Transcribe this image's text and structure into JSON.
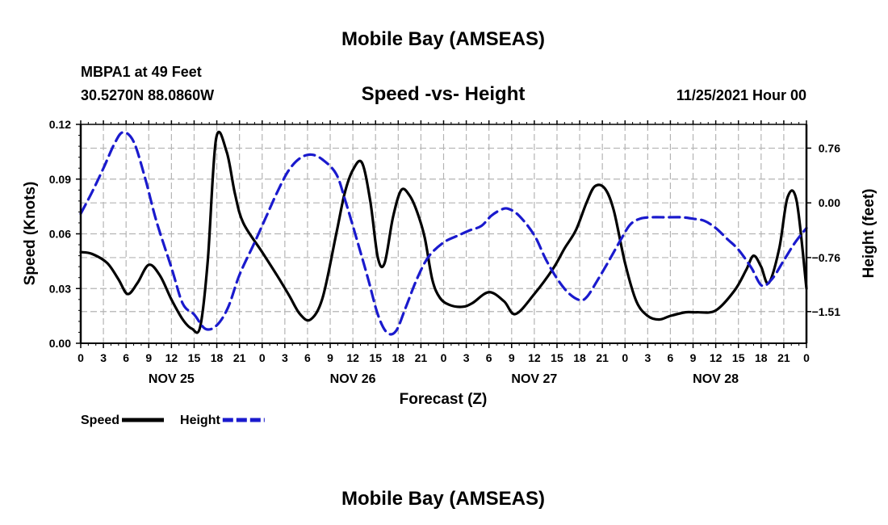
{
  "page": {
    "footer_title": "Mobile Bay (AMSEAS)"
  },
  "chart_data": {
    "type": "line",
    "title": "Mobile Bay (AMSEAS)",
    "subtitle": "Speed -vs- Height",
    "station": {
      "name": "MBPA1 at 49 Feet",
      "coords": "30.5270N  88.0860W"
    },
    "timestamp": "11/25/2021 Hour 00",
    "xlabel": "Forecast (Z)",
    "ylabel_left": "Speed (Knots)",
    "ylabel_right": "Height (feet)",
    "xlim": [
      0,
      96
    ],
    "ylim_left": [
      0,
      0.12
    ],
    "ylim_right": [
      -1.95,
      1.09
    ],
    "x_ticks": [
      {
        "x": 0,
        "label": "0"
      },
      {
        "x": 3,
        "label": "3"
      },
      {
        "x": 6,
        "label": "6"
      },
      {
        "x": 9,
        "label": "9"
      },
      {
        "x": 12,
        "label": "12"
      },
      {
        "x": 15,
        "label": "15"
      },
      {
        "x": 18,
        "label": "18"
      },
      {
        "x": 21,
        "label": "21"
      },
      {
        "x": 24,
        "label": "0"
      },
      {
        "x": 27,
        "label": "3"
      },
      {
        "x": 30,
        "label": "6"
      },
      {
        "x": 33,
        "label": "9"
      },
      {
        "x": 36,
        "label": "12"
      },
      {
        "x": 39,
        "label": "15"
      },
      {
        "x": 42,
        "label": "18"
      },
      {
        "x": 45,
        "label": "21"
      },
      {
        "x": 48,
        "label": "0"
      },
      {
        "x": 51,
        "label": "3"
      },
      {
        "x": 54,
        "label": "6"
      },
      {
        "x": 57,
        "label": "9"
      },
      {
        "x": 60,
        "label": "12"
      },
      {
        "x": 63,
        "label": "15"
      },
      {
        "x": 66,
        "label": "18"
      },
      {
        "x": 69,
        "label": "21"
      },
      {
        "x": 72,
        "label": "0"
      },
      {
        "x": 75,
        "label": "3"
      },
      {
        "x": 78,
        "label": "6"
      },
      {
        "x": 81,
        "label": "9"
      },
      {
        "x": 84,
        "label": "12"
      },
      {
        "x": 87,
        "label": "15"
      },
      {
        "x": 90,
        "label": "18"
      },
      {
        "x": 93,
        "label": "21"
      },
      {
        "x": 96,
        "label": "0"
      }
    ],
    "day_labels": [
      {
        "x": 12,
        "label": "NOV 25"
      },
      {
        "x": 36,
        "label": "NOV 26"
      },
      {
        "x": 60,
        "label": "NOV 27"
      },
      {
        "x": 84,
        "label": "NOV 28"
      }
    ],
    "y_ticks_left": [
      {
        "v": 0.0,
        "label": "0.00"
      },
      {
        "v": 0.03,
        "label": "0.03"
      },
      {
        "v": 0.06,
        "label": "0.06"
      },
      {
        "v": 0.09,
        "label": "0.09"
      },
      {
        "v": 0.12,
        "label": "0.12"
      }
    ],
    "y_ticks_right": [
      {
        "v": 0.76,
        "label": "0.76"
      },
      {
        "v": 0.0,
        "label": "0.00"
      },
      {
        "v": -0.76,
        "label": "−0.76"
      },
      {
        "v": -1.51,
        "label": "−1.51"
      }
    ],
    "series": [
      {
        "name": "Speed",
        "axis": "left",
        "color": "#000000",
        "style": "solid",
        "x": [
          0,
          1.5,
          3.5,
          5,
          6.2,
          7.5,
          9,
          10.5,
          12,
          13.5,
          14.7,
          15.8,
          16.8,
          17.9,
          19.3,
          20.4,
          21.5,
          24,
          26,
          27.6,
          29,
          30.4,
          32,
          33.8,
          34.9,
          36,
          37.2,
          38.3,
          39.3,
          40.2,
          41.3,
          42.4,
          43.5,
          44.5,
          45.5,
          46.5,
          47.5,
          48.8,
          50.5,
          51.8,
          54,
          56,
          57.5,
          60,
          62.5,
          64,
          65.5,
          66.9,
          68,
          69.3,
          70.5,
          72,
          73.5,
          75,
          76.5,
          78,
          80,
          81.5,
          84,
          86.5,
          88,
          89,
          90,
          91,
          92.4,
          93.5,
          94.7,
          96
        ],
        "values": [
          0.05,
          0.049,
          0.044,
          0.035,
          0.027,
          0.033,
          0.043,
          0.037,
          0.024,
          0.013,
          0.008,
          0.009,
          0.045,
          0.112,
          0.105,
          0.082,
          0.066,
          0.05,
          0.037,
          0.026,
          0.016,
          0.013,
          0.025,
          0.06,
          0.082,
          0.095,
          0.099,
          0.078,
          0.047,
          0.044,
          0.069,
          0.084,
          0.081,
          0.072,
          0.058,
          0.035,
          0.025,
          0.021,
          0.02,
          0.022,
          0.028,
          0.023,
          0.016,
          0.027,
          0.041,
          0.052,
          0.062,
          0.077,
          0.086,
          0.085,
          0.073,
          0.044,
          0.023,
          0.015,
          0.013,
          0.015,
          0.017,
          0.017,
          0.018,
          0.029,
          0.04,
          0.048,
          0.042,
          0.033,
          0.052,
          0.08,
          0.078,
          0.03
        ]
      },
      {
        "name": "Height",
        "axis": "right",
        "color": "#1a1acd",
        "style": "dashed",
        "x": [
          0,
          1.5,
          3,
          4.5,
          5.6,
          7,
          8.5,
          10,
          12,
          13.5,
          15,
          16.5,
          18,
          19.5,
          21,
          23,
          24.5,
          26,
          27.5,
          29,
          30.5,
          32,
          33.8,
          35,
          36.5,
          38,
          39.3,
          40.5,
          41.7,
          43,
          44.5,
          46,
          48,
          50,
          51.5,
          53,
          54.3,
          55.5,
          56.5,
          58,
          60,
          61.5,
          63,
          64.5,
          66,
          67,
          68.5,
          70,
          71.5,
          72.7,
          74,
          75.5,
          77.5,
          79.5,
          81,
          82.5,
          84,
          85.5,
          87,
          88.7,
          90.1,
          91.5,
          93,
          94.5,
          96
        ],
        "values": [
          -0.15,
          0.15,
          0.48,
          0.83,
          0.98,
          0.85,
          0.35,
          -0.25,
          -0.9,
          -1.4,
          -1.55,
          -1.75,
          -1.7,
          -1.45,
          -1.0,
          -0.55,
          -0.2,
          0.15,
          0.45,
          0.62,
          0.67,
          0.6,
          0.4,
          0.03,
          -0.5,
          -1.05,
          -1.55,
          -1.8,
          -1.78,
          -1.45,
          -1.05,
          -0.75,
          -0.55,
          -0.45,
          -0.38,
          -0.32,
          -0.18,
          -0.1,
          -0.08,
          -0.18,
          -0.45,
          -0.78,
          -1.05,
          -1.25,
          -1.35,
          -1.3,
          -1.05,
          -0.78,
          -0.5,
          -0.3,
          -0.22,
          -0.2,
          -0.2,
          -0.2,
          -0.22,
          -0.25,
          -0.35,
          -0.5,
          -0.65,
          -0.9,
          -1.15,
          -1.05,
          -0.8,
          -0.55,
          -0.35
        ]
      }
    ],
    "legend": [
      {
        "label": "Speed",
        "color": "#000000",
        "style": "solid"
      },
      {
        "label": "Height",
        "color": "#1a1acd",
        "style": "dashed"
      }
    ],
    "legend_position": "bottom-left",
    "grid": true
  }
}
